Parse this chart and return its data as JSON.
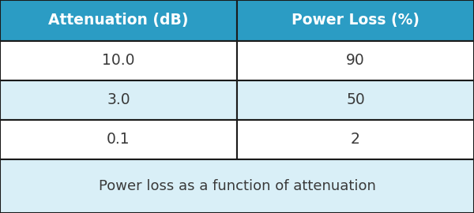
{
  "headers": [
    "Attenuation (dB)",
    "Power Loss (%)"
  ],
  "rows": [
    [
      "10.0",
      "90"
    ],
    [
      "3.0",
      "50"
    ],
    [
      "0.1",
      "2"
    ]
  ],
  "caption": "Power loss as a function of attenuation",
  "header_bg": "#2B9CC4",
  "header_text_color": "#FFFFFF",
  "row_bg_odd": "#FFFFFF",
  "row_bg_even": "#D9EFF7",
  "caption_bg": "#D9EFF7",
  "caption_text_color": "#3A3A3A",
  "border_color": "#1A1A1A",
  "cell_text_color": "#3A3A3A",
  "header_fontsize": 13.5,
  "data_fontsize": 13.5,
  "caption_fontsize": 13,
  "fig_width": 6.0,
  "fig_height": 2.7
}
